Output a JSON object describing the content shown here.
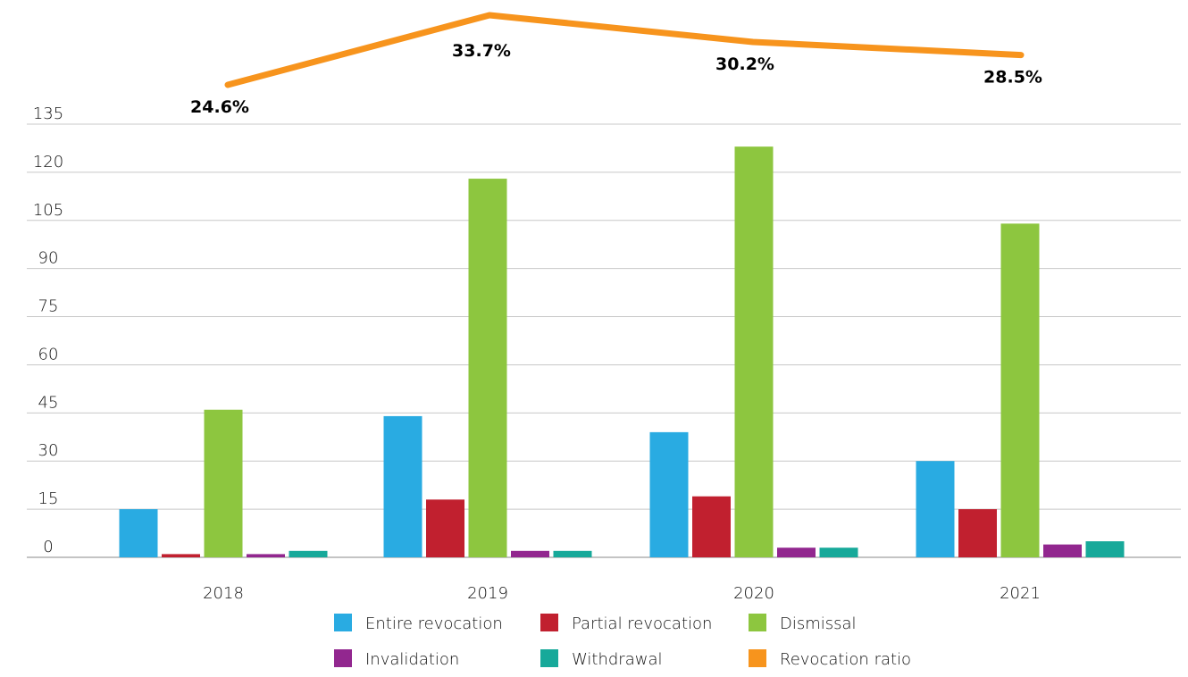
{
  "chart_data": {
    "type": "bar",
    "categories": [
      "2018",
      "2019",
      "2020",
      "2021"
    ],
    "series": [
      {
        "name": "Entire revocation",
        "color": "#29abe2",
        "values": [
          15,
          44,
          39,
          30
        ]
      },
      {
        "name": "Partial revocation",
        "color": "#c1202f",
        "values": [
          1,
          18,
          19,
          15
        ]
      },
      {
        "name": "Dismissal",
        "color": "#8dc63f",
        "values": [
          46,
          118,
          128,
          104
        ]
      },
      {
        "name": "Invalidation",
        "color": "#92278f",
        "values": [
          1,
          2,
          3,
          4
        ]
      },
      {
        "name": "Withdrawal",
        "color": "#17a99a",
        "values": [
          2,
          2,
          3,
          5
        ]
      }
    ],
    "line_series": {
      "name": "Revocation ratio",
      "color": "#f7941d",
      "values": [
        24.6,
        33.7,
        30.2,
        28.5
      ],
      "labels": [
        "24.6%",
        "33.7%",
        "30.2%",
        "28.5%"
      ]
    },
    "yticks": [
      "0",
      "15",
      "30",
      "45",
      "60",
      "75",
      "90",
      "105",
      "120",
      "135"
    ],
    "ylim": [
      0,
      135
    ],
    "grid": true,
    "legend_position": "bottom-center",
    "title": "",
    "xlabel": "",
    "ylabel": ""
  }
}
